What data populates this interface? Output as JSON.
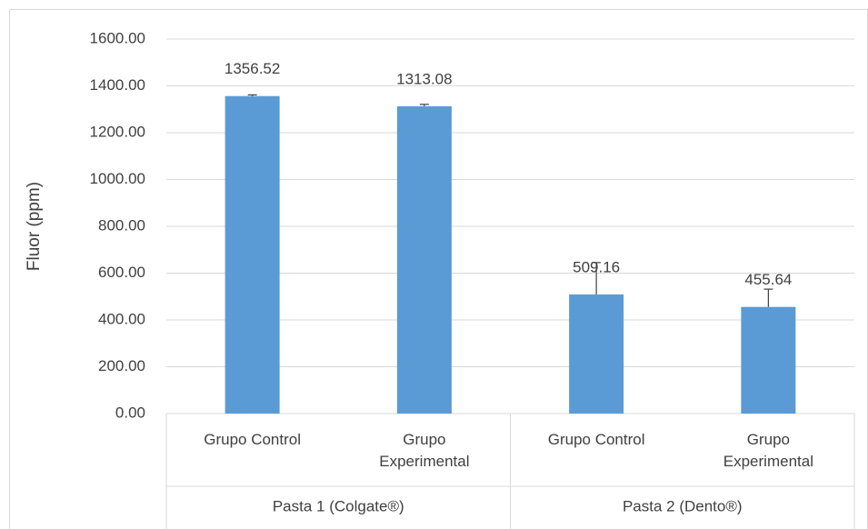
{
  "chart_data": {
    "type": "bar",
    "y_label": "Fluor (ppm)",
    "categories": [
      "Grupo Control",
      "Grupo Experimental",
      "Grupo Control",
      "Grupo Experimental"
    ],
    "groups": [
      "Pasta 1 (Colgate®)",
      "Pasta 2 (Dento®)"
    ],
    "values": [
      1356.52,
      1313.08,
      509.16,
      455.64
    ],
    "errors": [
      5,
      8,
      136,
      76
    ],
    "color": "#5b9bd5",
    "ylim": [
      0,
      1600
    ],
    "yticks": [
      {
        "value": 0,
        "label": "0.00"
      },
      {
        "value": 200,
        "label": "200.00"
      },
      {
        "value": 400,
        "label": "400.00"
      },
      {
        "value": 600,
        "label": "600.00"
      },
      {
        "value": 800,
        "label": "800.00"
      },
      {
        "value": 1000,
        "label": "1000.00"
      },
      {
        "value": 1200,
        "label": "1200.00"
      },
      {
        "value": 1400,
        "label": "1400.00"
      },
      {
        "value": 1600,
        "label": "1600.00"
      }
    ],
    "grid": true
  }
}
